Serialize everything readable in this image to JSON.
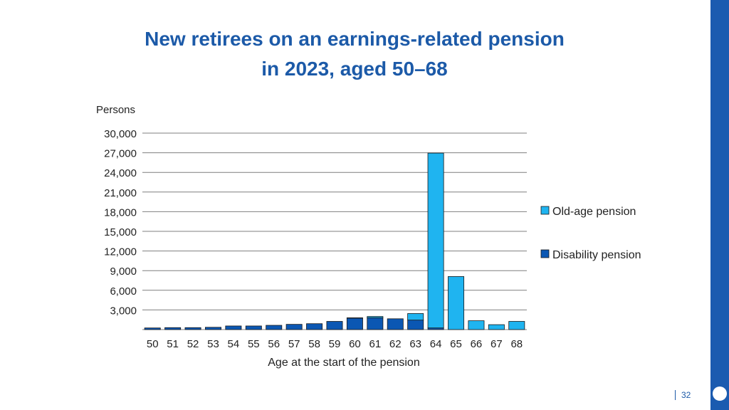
{
  "slide": {
    "title_line1": "New retirees on an earnings-related pension",
    "title_line2": "in 2023, aged 50–68",
    "page_number": "32"
  },
  "colors": {
    "title": "#1c5aa8",
    "accent_bar": "#1b5bb0",
    "old_age": "#1fb4f0",
    "disability": "#0b57b3"
  },
  "chart_data": {
    "type": "bar",
    "stacked": true,
    "title": "",
    "ylabel": "Persons",
    "xlabel": "Age at the start of the pension",
    "ylim": [
      0,
      30000
    ],
    "yticks": [
      3000,
      6000,
      9000,
      12000,
      15000,
      18000,
      21000,
      24000,
      27000,
      30000
    ],
    "ytick_labels": [
      "3,000",
      "6,000",
      "9,000",
      "12,000",
      "15,000",
      "18,000",
      "21,000",
      "24,000",
      "27,000",
      "30,000"
    ],
    "grid": true,
    "legend": "right",
    "categories": [
      "50",
      "51",
      "52",
      "53",
      "54",
      "55",
      "56",
      "57",
      "58",
      "59",
      "60",
      "61",
      "62",
      "63",
      "64",
      "65",
      "66",
      "67",
      "68"
    ],
    "series": [
      {
        "name": "Disability pension",
        "color": "#0b57b3",
        "values": [
          250,
          300,
          300,
          350,
          550,
          550,
          650,
          800,
          900,
          1250,
          1750,
          1800,
          1650,
          1450,
          250,
          0,
          0,
          0,
          0
        ]
      },
      {
        "name": "Old-age pension",
        "color": "#1fb4f0",
        "values": [
          0,
          0,
          0,
          0,
          0,
          0,
          0,
          0,
          0,
          0,
          50,
          200,
          0,
          1000,
          26700,
          8100,
          1350,
          750,
          1250
        ]
      }
    ]
  }
}
